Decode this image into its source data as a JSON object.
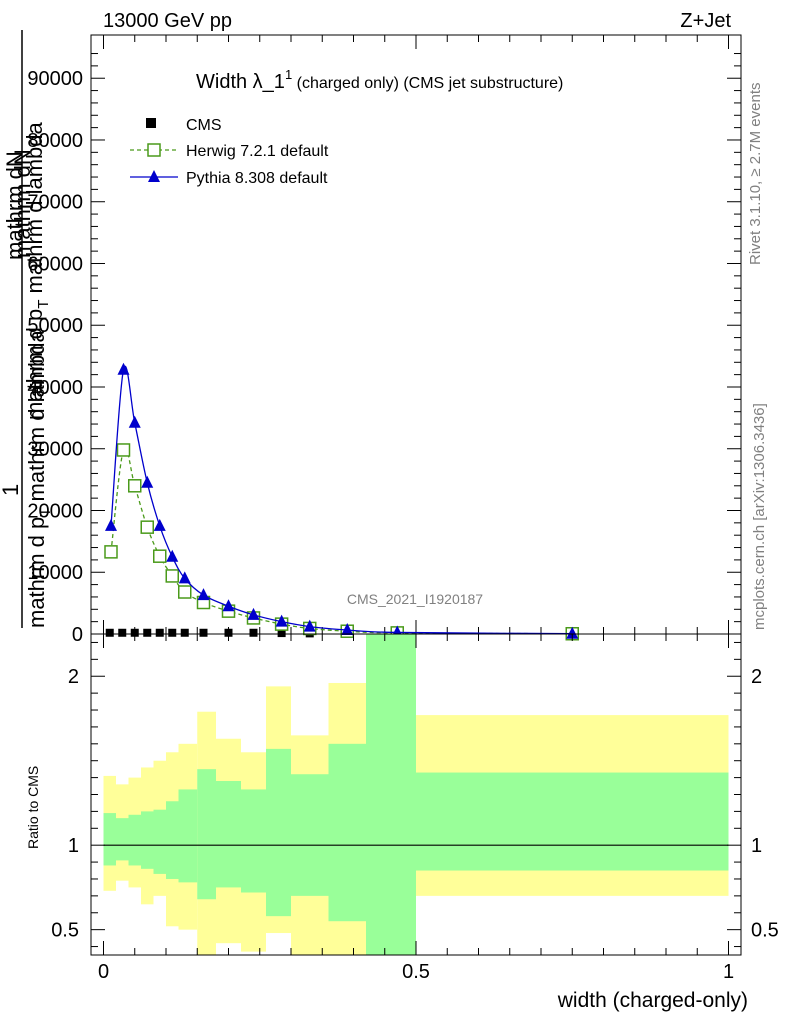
{
  "header": {
    "left": "13000 GeV pp",
    "right": "Z+Jet"
  },
  "side": {
    "rivet": "Rivet 3.1.10, ≥ 2.7M events",
    "mcplots": "mcplots.cern.ch [arXiv:1306.3436]"
  },
  "watermark": "CMS_2021_I1920187",
  "title": {
    "main": "Width λ_1",
    "sup": "1",
    "sub": " (charged only) (CMS jet substructure)"
  },
  "ylabel": {
    "one": "1",
    "line1": "mathrm d",
    "line1b": "N",
    "line2": "mathrm dN",
    "line3": "mathrm d p",
    "line3sub": "T",
    "line3b": " mathrm d lambda",
    "line4": "mathrm d p",
    "line4sub": "T",
    "line4b": " mathrm d lambda"
  },
  "xlabel": "width (charged-only)",
  "ratio_ylabel": "Ratio to CMS",
  "legend": [
    {
      "name": "CMS",
      "color": "#000000",
      "marker": "square-filled"
    },
    {
      "name": "Herwig 7.2.1 default",
      "color": "#4a9a1a",
      "marker": "square-open",
      "dashed": true
    },
    {
      "name": "Pythia 8.308 default",
      "color": "#0000cc",
      "marker": "triangle"
    }
  ],
  "chart_data": [
    {
      "type": "line",
      "xlim": [
        -0.02,
        1.02
      ],
      "ylim": [
        0,
        97000
      ],
      "yticks": [
        0,
        10000,
        20000,
        30000,
        40000,
        50000,
        60000,
        70000,
        80000,
        90000
      ],
      "ytick_labels": [
        "0",
        "10000",
        "20000",
        "30000",
        "40000",
        "50000",
        "60000",
        "70000",
        "80000",
        "90000"
      ],
      "series": [
        {
          "name": "CMS",
          "x": [
            0.01,
            0.03,
            0.05,
            0.07,
            0.09,
            0.11,
            0.13,
            0.16,
            0.2,
            0.24,
            0.285,
            0.33,
            0.39,
            0.47,
            0.75
          ],
          "values": [
            200,
            200,
            200,
            200,
            200,
            200,
            200,
            200,
            200,
            200,
            150,
            100,
            80,
            40,
            10
          ]
        },
        {
          "name": "Herwig 7.2.1 default",
          "x": [
            0.012,
            0.032,
            0.05,
            0.07,
            0.09,
            0.11,
            0.13,
            0.16,
            0.2,
            0.24,
            0.285,
            0.33,
            0.39,
            0.47,
            0.75
          ],
          "values": [
            13300,
            29800,
            24000,
            17300,
            12600,
            9400,
            6800,
            5100,
            3700,
            2600,
            1600,
            900,
            450,
            180,
            40
          ]
        },
        {
          "name": "Pythia 8.308 default",
          "x": [
            0.012,
            0.032,
            0.05,
            0.07,
            0.09,
            0.11,
            0.13,
            0.16,
            0.2,
            0.24,
            0.285,
            0.33,
            0.39,
            0.47,
            0.75
          ],
          "values": [
            17500,
            42800,
            34200,
            24500,
            17500,
            12500,
            9000,
            6300,
            4500,
            3100,
            2000,
            1200,
            650,
            250,
            50
          ]
        }
      ]
    },
    {
      "type": "area",
      "xlim": [
        -0.02,
        1.02
      ],
      "ylim": [
        0.35,
        2.25
      ],
      "yticks": [
        0.5,
        1,
        2
      ],
      "ytick_labels": [
        "0.5",
        "1",
        "2"
      ],
      "xticks": [
        0,
        0.5,
        1
      ],
      "xtick_labels": [
        "0",
        "0.5",
        "1"
      ],
      "reference": 1,
      "bin_edges": [
        0,
        0.02,
        0.04,
        0.06,
        0.08,
        0.1,
        0.12,
        0.15,
        0.18,
        0.22,
        0.26,
        0.3,
        0.36,
        0.42,
        0.5,
        1.0
      ],
      "band_outer": {
        "name": "outer uncertainty",
        "low": [
          0.73,
          0.79,
          0.75,
          0.65,
          0.7,
          0.52,
          0.5,
          0.35,
          0.42,
          0.37,
          0.48,
          0.35,
          0.35,
          0.35,
          0.7
        ],
        "high": [
          1.41,
          1.36,
          1.4,
          1.46,
          1.5,
          1.55,
          1.6,
          1.79,
          1.63,
          1.55,
          1.94,
          1.65,
          1.96,
          2.25,
          1.77
        ]
      },
      "band_inner": {
        "name": "inner uncertainty",
        "low": [
          0.88,
          0.91,
          0.88,
          0.86,
          0.83,
          0.8,
          0.78,
          0.68,
          0.75,
          0.72,
          0.58,
          0.7,
          0.55,
          0.35,
          0.85
        ],
        "high": [
          1.19,
          1.16,
          1.18,
          1.2,
          1.21,
          1.26,
          1.33,
          1.45,
          1.38,
          1.33,
          1.57,
          1.42,
          1.6,
          2.25,
          1.43
        ]
      }
    }
  ]
}
